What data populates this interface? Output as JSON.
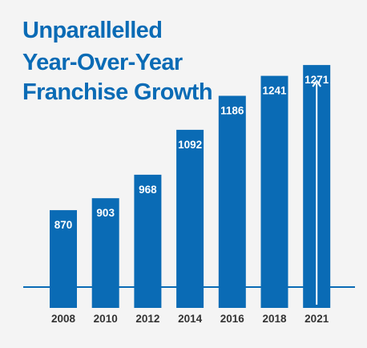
{
  "colors": {
    "background": "#f4f4f4",
    "accent": "#0a6bb5",
    "axis_text": "#333333",
    "bar_label": "#ffffff"
  },
  "chart_data": {
    "type": "bar",
    "title_lines": [
      "Unparallelled",
      "Year-Over-Year",
      "Franchise Growth"
    ],
    "categories": [
      "2008",
      "2010",
      "2012",
      "2014",
      "2016",
      "2018",
      "2021"
    ],
    "values": [
      870,
      903,
      968,
      1092,
      1186,
      1241,
      1271
    ],
    "data_labels": [
      "870",
      "903",
      "968",
      "1092",
      "1186",
      "1241",
      "1271"
    ],
    "xlabel": "",
    "ylabel": "",
    "ylim": [
      600,
      1300
    ],
    "grid": false,
    "legend": "none",
    "annotations": [
      {
        "type": "up-arrow-icon",
        "category": "2021"
      }
    ]
  }
}
